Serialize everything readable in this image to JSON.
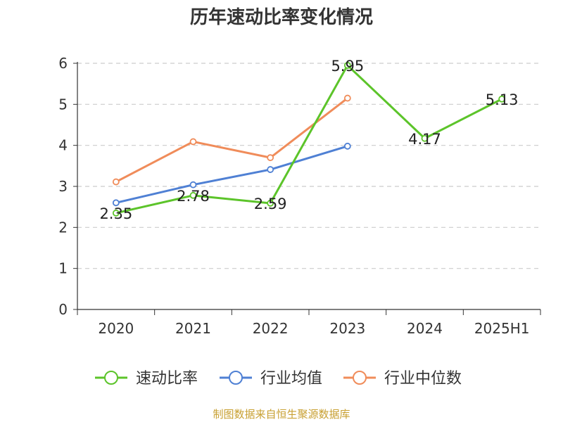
{
  "chart_data": {
    "type": "line",
    "title": "历年速动比率变化情况",
    "categories": [
      "2020",
      "2021",
      "2022",
      "2023",
      "2024",
      "2025H1"
    ],
    "ylim": [
      0,
      6
    ],
    "yticks": [
      "0",
      "1",
      "2",
      "3",
      "4",
      "5",
      "6"
    ],
    "grid": true,
    "legend_position": "bottom",
    "series": [
      {
        "name": "速动比率",
        "color": "#5cc42a",
        "values": [
          2.35,
          2.78,
          2.59,
          5.95,
          4.17,
          5.13
        ],
        "labels": [
          "2.35",
          "2.78",
          "2.59",
          "5.95",
          "4.17",
          "5.13"
        ]
      },
      {
        "name": "行业均值",
        "color": "#4f80d4",
        "values": [
          2.6,
          3.04,
          3.41,
          3.98,
          null,
          null
        ]
      },
      {
        "name": "行业中位数",
        "color": "#f08c5a",
        "values": [
          3.11,
          4.09,
          3.7,
          5.15,
          null,
          null
        ]
      }
    ]
  },
  "source": "制图数据来自恒生聚源数据库"
}
